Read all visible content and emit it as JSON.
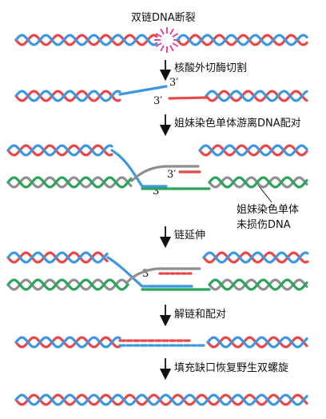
{
  "labels": {
    "top": "双链DNA断裂",
    "step1": "核酸外切酶切割",
    "step2": "姐妹染色单体游离DNA配对",
    "callout_line1": "姐妹染色单体",
    "callout_line2": "未损伤DNA",
    "step3": "链延伸",
    "step4": "解链和配对",
    "step5": "填充缺口恢复野生双螺旋"
  },
  "prime": "3′",
  "colors": {
    "red": "#e8484a",
    "blue": "#3e97e2",
    "gray": "#8f8f8f",
    "green": "#2aa55b",
    "burst": "#e0379a"
  }
}
